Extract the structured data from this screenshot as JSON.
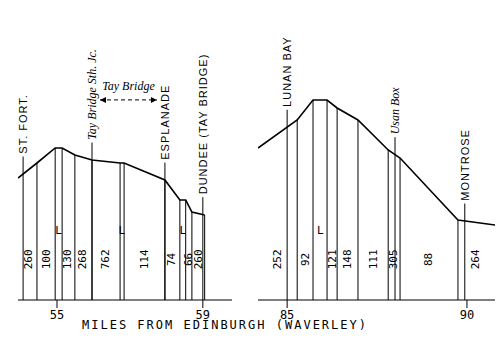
{
  "chart_data": [
    {
      "type": "line",
      "xlabel": "MILES FROM EDINBURGH (WAVERLEY)",
      "color": "#000000",
      "tick_labels": "x",
      "x": [
        53.93,
        54.45,
        54.95,
        55.14,
        55.49,
        55.96,
        56.73,
        56.84,
        57.96,
        58.37,
        58.53,
        58.7,
        59.05
      ],
      "values": [
        122,
        137,
        152,
        152,
        145,
        140,
        137,
        137,
        120,
        100,
        100,
        88,
        85
      ],
      "xlim": [
        53.93,
        59.8
      ],
      "xticks": [
        55,
        59
      ],
      "ylim": [
        0,
        290
      ],
      "stations": [
        {
          "x": 54.07,
          "label": "ST. FORT."
        },
        {
          "x": 55.96,
          "label": "Tay Bridge Sth. Jc."
        },
        {
          "x": 57.96,
          "label": "ESPLANADE"
        },
        {
          "x": 59.0,
          "label": "DUNDEE (TAY BRIDGE)"
        }
      ],
      "gradients": [
        {
          "x": 54.21,
          "label": "260"
        },
        {
          "x": 54.7,
          "label": "100"
        },
        {
          "x": 55.04,
          "label": "L"
        },
        {
          "x": 55.3,
          "label": "130"
        },
        {
          "x": 55.71,
          "label": "268"
        },
        {
          "x": 56.34,
          "label": "762"
        },
        {
          "x": 56.78,
          "label": "L"
        },
        {
          "x": 57.41,
          "label": "114"
        },
        {
          "x": 58.15,
          "label": "74"
        },
        {
          "x": 58.45,
          "label": "L"
        },
        {
          "x": 58.62,
          "label": "66"
        },
        {
          "x": 58.87,
          "label": "260"
        }
      ],
      "span": {
        "label": "Tay Bridge",
        "from": 55.96,
        "to": 57.96
      }
    },
    {
      "type": "line",
      "color": "#000000",
      "tick_labels": "x",
      "x": [
        84.19,
        85.28,
        85.72,
        86.11,
        86.39,
        86.97,
        87.81,
        88.14,
        89.75,
        90.78
      ],
      "values": [
        152,
        180,
        200,
        200,
        192,
        180,
        150,
        142,
        80,
        75
      ],
      "xlim": [
        84.19,
        90.78
      ],
      "xticks": [
        85,
        90
      ],
      "ylim": [
        0,
        290
      ],
      "stations": [
        {
          "x": 85.0,
          "label": "LUNAN BAY"
        },
        {
          "x": 88.0,
          "label": "Usan Box"
        },
        {
          "x": 89.94,
          "label": "MONTROSE"
        }
      ],
      "gradients": [
        {
          "x": 84.72,
          "label": "252"
        },
        {
          "x": 85.5,
          "label": "92"
        },
        {
          "x": 85.92,
          "label": "L"
        },
        {
          "x": 86.25,
          "label": "121"
        },
        {
          "x": 86.67,
          "label": "148"
        },
        {
          "x": 87.39,
          "label": "111"
        },
        {
          "x": 87.97,
          "label": "305"
        },
        {
          "x": 88.94,
          "label": "88"
        },
        {
          "x": 90.25,
          "label": "264"
        }
      ]
    }
  ]
}
